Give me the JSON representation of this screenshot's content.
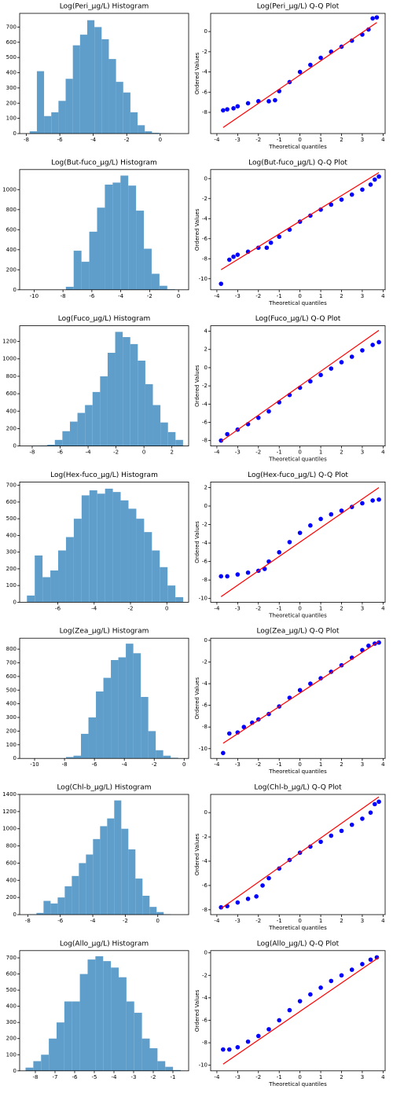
{
  "chart_data": [
    {
      "type": "histogram",
      "title": "Log(Peri_µg/L) Histogram",
      "color": "#5f9ecb",
      "bins": [
        -7.8,
        -7.37,
        -6.94,
        -6.51,
        -6.08,
        -5.65,
        -5.22,
        -4.79,
        -4.36,
        -3.93,
        -3.5,
        -3.07,
        -2.64,
        -2.21,
        -1.78,
        -1.35,
        -0.92,
        -0.49,
        -0.06,
        0.37,
        0.8
      ],
      "values": [
        15,
        410,
        115,
        140,
        215,
        360,
        580,
        650,
        745,
        700,
        620,
        490,
        340,
        270,
        140,
        55,
        15,
        5,
        2,
        1
      ],
      "xlim": [
        -8.4,
        1.7
      ],
      "xticks": [
        -8,
        -6,
        -4,
        -2,
        0
      ],
      "ylim": [
        0,
        790
      ],
      "yticks": [
        0,
        100,
        200,
        300,
        400,
        500,
        600,
        700
      ]
    },
    {
      "type": "qq",
      "title": "Log(Peri_µg/L) Q-Q Plot",
      "x_label": "Theoretical quantiles",
      "y_label": "Ordered Values",
      "color": "blue",
      "x": [
        -3.7,
        -3.5,
        -3.2,
        -3,
        -2.5,
        -2,
        -1.5,
        -1.2,
        -1,
        -0.5,
        0,
        0.5,
        1,
        1.5,
        2,
        2.5,
        3,
        3.3,
        3.5,
        3.7
      ],
      "values": [
        -7.8,
        -7.7,
        -7.6,
        -7.4,
        -7.1,
        -6.9,
        -6.9,
        -6.8,
        -5.9,
        -5.0,
        -4.0,
        -3.3,
        -2.6,
        -2.0,
        -1.5,
        -0.9,
        -0.3,
        0.2,
        1.3,
        1.4
      ],
      "fit_line": {
        "x": [
          -3.7,
          3.7
        ],
        "values": [
          -9.5,
          0.9
        ],
        "color": "red"
      },
      "xlim": [
        -4.3,
        4.1
      ],
      "xticks": [
        -4,
        -3,
        -2,
        -1,
        0,
        1,
        2,
        3,
        4
      ],
      "ylim": [
        -10.1,
        1.8
      ],
      "yticks": [
        -8,
        -6,
        -4,
        -2,
        0
      ]
    },
    {
      "type": "histogram",
      "title": "Log(But-fuco_µg/L) Histogram",
      "color": "#5f9ecb",
      "bins": [
        -10.5,
        -9.96,
        -9.42,
        -8.88,
        -8.34,
        -7.8,
        -7.26,
        -6.72,
        -6.18,
        -5.64,
        -5.1,
        -4.56,
        -4.02,
        -3.48,
        -2.94,
        -2.4,
        -1.86,
        -1.32,
        -0.78,
        -0.24,
        0.3
      ],
      "values": [
        1,
        0,
        0,
        0,
        0,
        30,
        390,
        280,
        580,
        820,
        1050,
        1070,
        1140,
        1040,
        790,
        410,
        160,
        40,
        5,
        2
      ],
      "xlim": [
        -11,
        0.7
      ],
      "xticks": [
        -10,
        -8,
        -6,
        -4,
        -2,
        0
      ],
      "ylim": [
        0,
        1200
      ],
      "yticks": [
        0,
        200,
        400,
        600,
        800,
        1000
      ]
    },
    {
      "type": "qq",
      "title": "Log(But-fuco_µg/L) Q-Q Plot",
      "x_label": "Theoretical quantiles",
      "y_label": "Ordered Values",
      "color": "blue",
      "x": [
        -3.8,
        -3.4,
        -3.2,
        -3,
        -2.5,
        -2,
        -1.6,
        -1.4,
        -1,
        -0.5,
        0,
        0.5,
        1,
        1.5,
        2,
        2.5,
        3,
        3.4,
        3.6,
        3.8
      ],
      "values": [
        -10.5,
        -8.1,
        -7.8,
        -7.6,
        -7.3,
        -6.9,
        -6.9,
        -6.4,
        -5.8,
        -5.1,
        -4.3,
        -3.7,
        -3.1,
        -2.6,
        -2.1,
        -1.6,
        -1.1,
        -0.6,
        -0.1,
        0.2
      ],
      "fit_line": {
        "x": [
          -3.8,
          3.8
        ],
        "values": [
          -9.1,
          0.6
        ],
        "color": "red"
      },
      "xlim": [
        -4.3,
        4.1
      ],
      "xticks": [
        -4,
        -3,
        -2,
        -1,
        0,
        1,
        2,
        3,
        4
      ],
      "ylim": [
        -11.1,
        0.9
      ],
      "yticks": [
        -10,
        -8,
        -6,
        -4,
        -2,
        0
      ]
    },
    {
      "type": "histogram",
      "title": "Log(Fuco_µg/L) Histogram",
      "color": "#5f9ecb",
      "bins": [
        -8,
        -7.46,
        -6.92,
        -6.38,
        -5.84,
        -5.3,
        -4.76,
        -4.22,
        -3.68,
        -3.14,
        -2.6,
        -2.06,
        -1.52,
        -0.98,
        -0.44,
        0.1,
        0.64,
        1.18,
        1.72,
        2.26,
        2.8
      ],
      "values": [
        3,
        5,
        15,
        70,
        170,
        280,
        380,
        470,
        620,
        800,
        1070,
        1310,
        1250,
        1170,
        980,
        710,
        470,
        270,
        160,
        70
      ],
      "xlim": [
        -8.9,
        3.2
      ],
      "xticks": [
        -8,
        -6,
        -4,
        -2,
        0,
        2
      ],
      "ylim": [
        0,
        1380
      ],
      "yticks": [
        0,
        200,
        400,
        600,
        800,
        1000,
        1200
      ]
    },
    {
      "type": "qq",
      "title": "Log(Fuco_µg/L) Q-Q Plot",
      "x_label": "Theoretical quantiles",
      "y_label": "Ordered Values",
      "color": "blue",
      "x": [
        -3.8,
        -3.5,
        -3,
        -2.5,
        -2,
        -1.5,
        -1,
        -0.5,
        0,
        0.5,
        1,
        1.5,
        2,
        2.5,
        3,
        3.5,
        3.8
      ],
      "values": [
        -8.0,
        -7.3,
        -6.8,
        -6.2,
        -5.5,
        -4.8,
        -3.8,
        -3.0,
        -2.2,
        -1.5,
        -0.8,
        -0.1,
        0.6,
        1.2,
        1.9,
        2.5,
        2.8
      ],
      "fit_line": {
        "x": [
          -3.8,
          3.8
        ],
        "values": [
          -8.1,
          4.1
        ],
        "color": "red"
      },
      "xlim": [
        -4.3,
        4.1
      ],
      "xticks": [
        -4,
        -3,
        -2,
        -1,
        0,
        1,
        2,
        3,
        4
      ],
      "ylim": [
        -8.6,
        4.6
      ],
      "yticks": [
        -8,
        -6,
        -4,
        -2,
        0,
        2,
        4
      ]
    },
    {
      "type": "histogram",
      "title": "Log(Hex-fuco_µg/L) Histogram",
      "color": "#5f9ecb",
      "bins": [
        -7.7,
        -7.27,
        -6.84,
        -6.41,
        -5.98,
        -5.55,
        -5.12,
        -4.69,
        -4.26,
        -3.83,
        -3.4,
        -2.97,
        -2.54,
        -2.11,
        -1.68,
        -1.25,
        -0.82,
        -0.39,
        0.04,
        0.47,
        0.9
      ],
      "values": [
        40,
        280,
        150,
        190,
        310,
        390,
        500,
        640,
        670,
        650,
        680,
        660,
        610,
        560,
        500,
        420,
        310,
        210,
        100,
        30
      ],
      "xlim": [
        -8.1,
        1.2
      ],
      "xticks": [
        -6,
        -4,
        -2,
        0
      ],
      "ylim": [
        0,
        720
      ],
      "yticks": [
        0,
        100,
        200,
        300,
        400,
        500,
        600,
        700
      ]
    },
    {
      "type": "qq",
      "title": "Log(Hex-fuco_µg/L) Q-Q Plot",
      "x_label": "Theoretical quantiles",
      "y_label": "Ordered Values",
      "color": "blue",
      "x": [
        -3.8,
        -3.5,
        -3,
        -2.5,
        -2,
        -1.7,
        -1.5,
        -1,
        -0.5,
        0,
        0.5,
        1,
        1.5,
        2,
        2.5,
        3,
        3.5,
        3.8
      ],
      "values": [
        -7.6,
        -7.6,
        -7.4,
        -7.2,
        -7.0,
        -6.8,
        -6.0,
        -5.0,
        -3.9,
        -2.9,
        -2.1,
        -1.4,
        -0.9,
        -0.5,
        -0.1,
        0.3,
        0.6,
        0.7
      ],
      "fit_line": {
        "x": [
          -3.8,
          3.8
        ],
        "values": [
          -9.8,
          2.0
        ],
        "color": "red"
      },
      "xlim": [
        -4.3,
        4.1
      ],
      "xticks": [
        -4,
        -3,
        -2,
        -1,
        0,
        1,
        2,
        3,
        4
      ],
      "ylim": [
        -10.4,
        2.6
      ],
      "yticks": [
        -10,
        -8,
        -6,
        -4,
        -2,
        0,
        2
      ]
    },
    {
      "type": "histogram",
      "title": "Log(Zea_µg/L) Histogram",
      "color": "#5f9ecb",
      "bins": [
        -10.4,
        -9.9,
        -9.4,
        -8.9,
        -8.4,
        -7.9,
        -7.4,
        -6.9,
        -6.4,
        -5.9,
        -5.4,
        -4.9,
        -4.4,
        -3.9,
        -3.4,
        -2.9,
        -2.4,
        -1.9,
        -1.4,
        -0.9,
        -0.4
      ],
      "values": [
        1,
        0,
        0,
        0,
        0,
        10,
        20,
        180,
        300,
        490,
        590,
        720,
        740,
        840,
        770,
        450,
        200,
        60,
        20,
        5
      ],
      "xlim": [
        -11,
        0.3
      ],
      "xticks": [
        -10,
        -8,
        -6,
        -4,
        -2,
        0
      ],
      "ylim": [
        0,
        880
      ],
      "yticks": [
        0,
        100,
        200,
        300,
        400,
        500,
        600,
        700,
        800
      ]
    },
    {
      "type": "qq",
      "title": "Log(Zea_µg/L) Q-Q Plot",
      "x_label": "Theoretical quantiles",
      "y_label": "Ordered Values",
      "color": "blue",
      "x": [
        -3.7,
        -3.4,
        -3,
        -2.7,
        -2.3,
        -2,
        -1.5,
        -1,
        -0.5,
        0,
        0.5,
        1,
        1.5,
        2,
        2.5,
        3,
        3.3,
        3.6,
        3.8
      ],
      "values": [
        -10.4,
        -8.6,
        -8.5,
        -8.0,
        -7.6,
        -7.3,
        -6.8,
        -6.1,
        -5.3,
        -4.6,
        -4.0,
        -3.5,
        -2.9,
        -2.3,
        -1.6,
        -0.9,
        -0.5,
        -0.3,
        -0.2
      ],
      "fit_line": {
        "x": [
          -3.7,
          3.8
        ],
        "values": [
          -9.5,
          -0.1
        ],
        "color": "red"
      },
      "xlim": [
        -4.3,
        4.1
      ],
      "xticks": [
        -4,
        -3,
        -2,
        -1,
        0,
        1,
        2,
        3,
        4
      ],
      "ylim": [
        -10.9,
        0.2
      ],
      "yticks": [
        -10,
        -8,
        -6,
        -4,
        -2,
        0
      ]
    },
    {
      "type": "histogram",
      "title": "Log(Chl-b_µg/L) Histogram",
      "color": "#5f9ecb",
      "bins": [
        -7.9,
        -7.465,
        -7.03,
        -6.595,
        -6.16,
        -5.725,
        -5.29,
        -4.855,
        -4.42,
        -3.985,
        -3.55,
        -3.115,
        -2.68,
        -2.245,
        -1.81,
        -1.375,
        -0.94,
        -0.505,
        -0.07,
        0.365,
        0.8
      ],
      "values": [
        5,
        20,
        160,
        130,
        200,
        330,
        450,
        600,
        700,
        880,
        1030,
        1120,
        1330,
        1000,
        760,
        420,
        220,
        90,
        30,
        5
      ],
      "xlim": [
        -8.5,
        1.9
      ],
      "xticks": [
        -8,
        -6,
        -4,
        -2,
        0
      ],
      "ylim": [
        0,
        1400
      ],
      "yticks": [
        0,
        200,
        400,
        600,
        800,
        1000,
        1200,
        1400
      ]
    },
    {
      "type": "qq",
      "title": "Log(Chl-b_µg/L) Q-Q Plot",
      "x_label": "Theoretical quantiles",
      "y_label": "Ordered Values",
      "color": "blue",
      "x": [
        -3.8,
        -3.5,
        -3,
        -2.5,
        -2.1,
        -1.8,
        -1.5,
        -1,
        -0.5,
        0,
        0.5,
        1,
        1.5,
        2,
        2.5,
        3,
        3.4,
        3.6,
        3.8
      ],
      "values": [
        -7.8,
        -7.7,
        -7.4,
        -7.1,
        -6.9,
        -6.0,
        -5.4,
        -4.6,
        -3.9,
        -3.3,
        -2.8,
        -2.4,
        -1.9,
        -1.5,
        -1.0,
        -0.5,
        0,
        0.7,
        0.9
      ],
      "fit_line": {
        "x": [
          -3.8,
          3.8
        ],
        "values": [
          -7.9,
          1.3
        ],
        "color": "red"
      },
      "xlim": [
        -4.3,
        4.1
      ],
      "xticks": [
        -4,
        -3,
        -2,
        -1,
        0,
        1,
        2,
        3,
        4
      ],
      "ylim": [
        -8.4,
        1.5
      ],
      "yticks": [
        -8,
        -6,
        -4,
        -2,
        0
      ]
    },
    {
      "type": "histogram",
      "title": "Log(Allo_µg/L) Histogram",
      "color": "#5f9ecb",
      "bins": [
        -8.5,
        -8.105,
        -7.71,
        -7.315,
        -6.92,
        -6.525,
        -6.13,
        -5.735,
        -5.34,
        -4.945,
        -4.55,
        -4.155,
        -3.76,
        -3.365,
        -2.97,
        -2.575,
        -2.18,
        -1.785,
        -1.39,
        -0.995,
        -0.6
      ],
      "values": [
        20,
        60,
        100,
        200,
        300,
        430,
        430,
        600,
        690,
        710,
        680,
        640,
        580,
        430,
        360,
        200,
        140,
        60,
        25,
        5
      ],
      "xlim": [
        -8.8,
        -0.2
      ],
      "xticks": [
        -8,
        -7,
        -6,
        -5,
        -4,
        -3,
        -2,
        -1
      ],
      "ylim": [
        0,
        745
      ],
      "yticks": [
        0,
        100,
        200,
        300,
        400,
        500,
        600,
        700
      ]
    },
    {
      "type": "qq",
      "title": "Log(Allo_µg/L) Q-Q Plot",
      "x_label": "Theoretical quantiles",
      "y_label": "Ordered Values",
      "color": "blue",
      "x": [
        -3.7,
        -3.4,
        -3,
        -2.5,
        -2,
        -1.5,
        -1,
        -0.5,
        0,
        0.5,
        1,
        1.5,
        2,
        2.5,
        3,
        3.4,
        3.7
      ],
      "values": [
        -8.6,
        -8.6,
        -8.4,
        -7.9,
        -7.4,
        -6.8,
        -6.0,
        -5.1,
        -4.3,
        -3.7,
        -3.1,
        -2.5,
        -2.0,
        -1.5,
        -1.0,
        -0.6,
        -0.4
      ],
      "fit_line": {
        "x": [
          -3.7,
          3.8
        ],
        "values": [
          -9.9,
          -0.4
        ],
        "color": "red"
      },
      "xlim": [
        -4.3,
        4.1
      ],
      "xticks": [
        -4,
        -3,
        -2,
        -1,
        0,
        1,
        2,
        3,
        4
      ],
      "ylim": [
        -10.5,
        0.2
      ],
      "yticks": [
        -10,
        -8,
        -6,
        -4,
        -2,
        0
      ]
    }
  ]
}
